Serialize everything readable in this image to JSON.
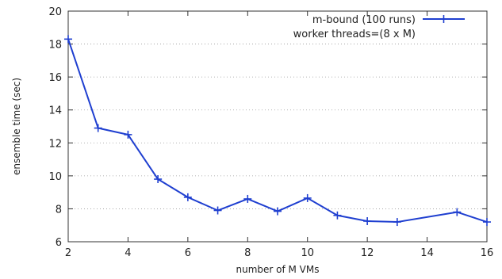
{
  "chart_data": {
    "type": "line",
    "title": "",
    "xlabel": "number of M VMs",
    "ylabel": "ensemble time (sec)",
    "xlim": [
      2,
      16
    ],
    "ylim": [
      6,
      20
    ],
    "xticks": [
      2,
      4,
      6,
      8,
      10,
      12,
      14,
      16
    ],
    "yticks": [
      6,
      8,
      10,
      12,
      14,
      16,
      18,
      20
    ],
    "grid": "horizontal-dotted",
    "legend_position": "top-right",
    "legend_lines": [
      "m-bound (100 runs)",
      "worker threads=(8 x M)"
    ],
    "series": [
      {
        "name": "m-bound (100 runs)",
        "color": "#1f3fd0",
        "marker": "plus",
        "x": [
          2,
          3,
          4,
          5,
          6,
          7,
          8,
          9,
          10,
          11,
          12,
          13,
          15,
          16
        ],
        "y": [
          18.3,
          12.9,
          12.5,
          9.8,
          8.7,
          7.9,
          8.6,
          7.85,
          8.65,
          7.6,
          7.25,
          7.2,
          7.8,
          7.2
        ]
      }
    ]
  }
}
